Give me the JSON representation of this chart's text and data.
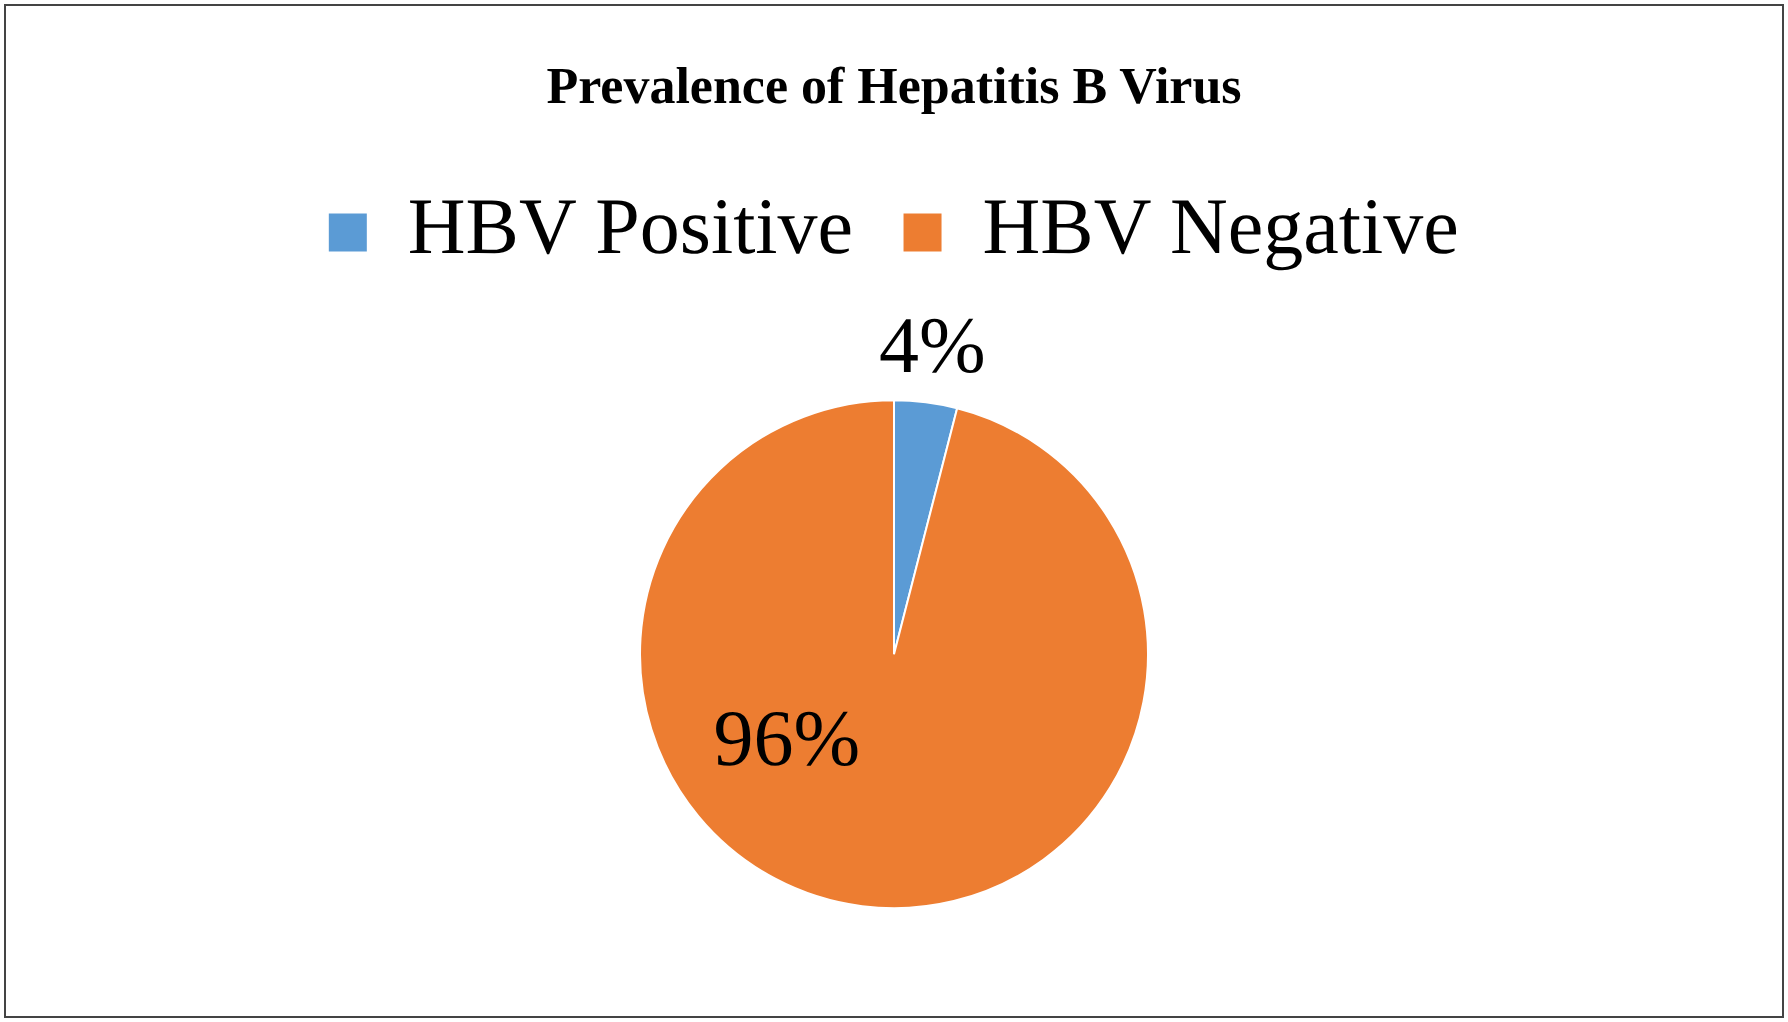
{
  "chart_data": {
    "type": "pie",
    "title": "Prevalence of Hepatitis B Virus",
    "categories": [
      "HBV Positive",
      "HBV Negative"
    ],
    "values": [
      4,
      96
    ],
    "colors": [
      "#5b9bd5",
      "#ed7d31"
    ],
    "value_labels": [
      "4%",
      "96%"
    ],
    "legend": "top"
  }
}
